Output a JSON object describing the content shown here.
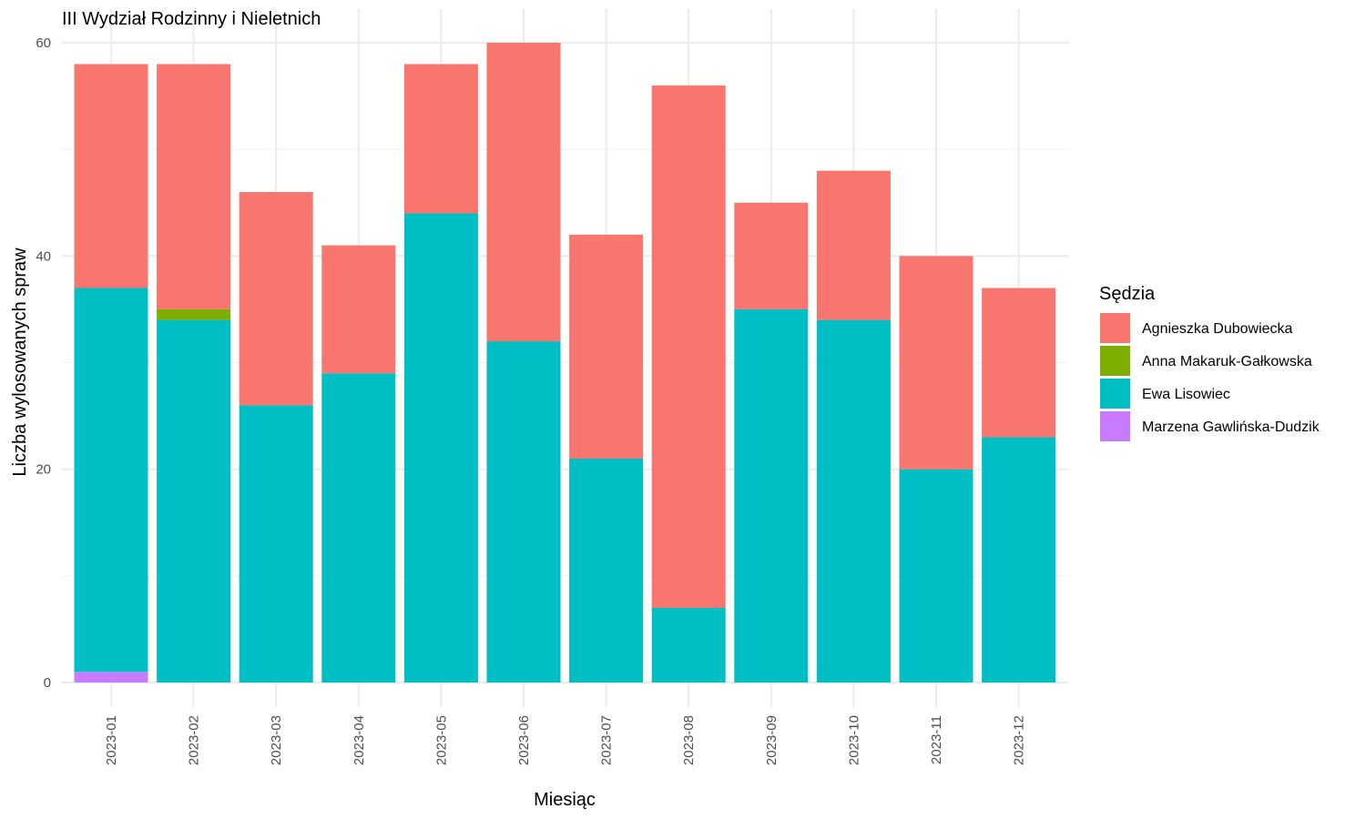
{
  "chart_data": {
    "type": "bar",
    "stacked": true,
    "title": "III Wydział Rodzinny i Nieletnich",
    "xlabel": "Miesiąc",
    "ylabel": "Liczba wylosowanych spraw",
    "ylim": [
      0,
      60
    ],
    "y_ticks": [
      "0",
      "20",
      "40",
      "60"
    ],
    "grid": true,
    "legend_position": "right",
    "legend_title": "Sędzia",
    "categories": [
      "2023-01",
      "2023-02",
      "2023-03",
      "2023-04",
      "2023-05",
      "2023-06",
      "2023-07",
      "2023-08",
      "2023-09",
      "2023-10",
      "2023-11",
      "2023-12"
    ],
    "series": [
      {
        "name": "Agnieszka Dubowiecka",
        "color": "#F8766D",
        "values": [
          21,
          23,
          20,
          12,
          14,
          28,
          21,
          49,
          10,
          14,
          20,
          14
        ]
      },
      {
        "name": "Anna Makaruk-Gałkowska",
        "color": "#7CAE00",
        "values": [
          0,
          1,
          0,
          0,
          0,
          0,
          0,
          0,
          0,
          0,
          0,
          0
        ]
      },
      {
        "name": "Ewa Lisowiec",
        "color": "#00BFC4",
        "values": [
          36,
          34,
          26,
          29,
          44,
          32,
          21,
          7,
          35,
          34,
          20,
          23
        ]
      },
      {
        "name": "Marzena Gawlińska-Dudzik",
        "color": "#C77CFF",
        "values": [
          1,
          0,
          0,
          0,
          0,
          0,
          0,
          0,
          0,
          0,
          0,
          0
        ]
      }
    ]
  }
}
